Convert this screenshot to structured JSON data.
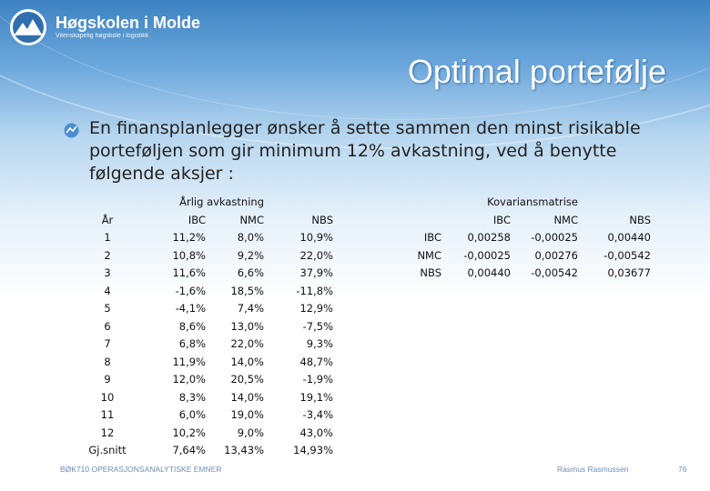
{
  "header": {
    "logo_name": "Høgskolen i Molde",
    "logo_tagline": "Vitenskapelig høgskole i logistikk",
    "title": "Optimal portefølje"
  },
  "bullet": {
    "text": "En finansplanlegger ønsker å sette sammen den minst risikable porteføljen som gir minimum 12% avkastning, ved å benytte følgende aksjer :"
  },
  "returns": {
    "super_header": "Årlig avkastning",
    "headers": [
      "År",
      "IBC",
      "NMC",
      "NBS"
    ],
    "rows": [
      [
        "1",
        "11,2%",
        "8,0%",
        "10,9%"
      ],
      [
        "2",
        "10,8%",
        "9,2%",
        "22,0%"
      ],
      [
        "3",
        "11,6%",
        "6,6%",
        "37,9%"
      ],
      [
        "4",
        "-1,6%",
        "18,5%",
        "-11,8%"
      ],
      [
        "5",
        "-4,1%",
        "7,4%",
        "12,9%"
      ],
      [
        "6",
        "8,6%",
        "13,0%",
        "-7,5%"
      ],
      [
        "7",
        "6,8%",
        "22,0%",
        "9,3%"
      ],
      [
        "8",
        "11,9%",
        "14,0%",
        "48,7%"
      ],
      [
        "9",
        "12,0%",
        "20,5%",
        "-1,9%"
      ],
      [
        "10",
        "8,3%",
        "14,0%",
        "19,1%"
      ],
      [
        "11",
        "6,0%",
        "19,0%",
        "-3,4%"
      ],
      [
        "12",
        "10,2%",
        "9,0%",
        "43,0%"
      ],
      [
        "Gj.snitt",
        "7,64%",
        "13,43%",
        "14,93%"
      ]
    ]
  },
  "covariance": {
    "super_header": "Kovariansmatrise",
    "headers": [
      "",
      "IBC",
      "NMC",
      "NBS"
    ],
    "rows": [
      [
        "IBC",
        "0,00258",
        "-0,00025",
        "0,00440"
      ],
      [
        "NMC",
        "-0,00025",
        "0,00276",
        "-0,00542"
      ],
      [
        "NBS",
        "0,00440",
        "-0,00542",
        "0,03677"
      ]
    ]
  },
  "footer": {
    "course": "BØK710 OPERASJONSANALYTISKE EMNER",
    "author": "Rasmus Rasmussen",
    "page": "76"
  },
  "colors": {
    "header_blue": "#3e82c2",
    "footer_text": "#6a8fb8",
    "bullet_icon": "#4a8fd0"
  }
}
